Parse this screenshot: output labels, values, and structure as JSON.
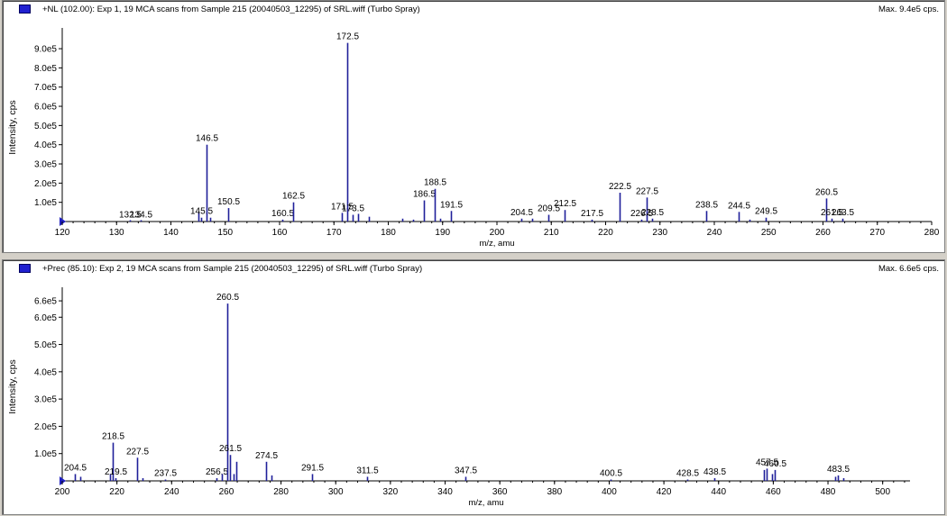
{
  "chart_data": [
    {
      "type": "bar",
      "title": "+NL (102.00): Exp 1, 19 MCA scans from Sample 215 (20040503_12295) of SRL.wiff (Turbo Spray)",
      "max_label": "Max. 9.4e5 cps.",
      "xlabel": "m/z, amu",
      "ylabel": "Intensity, cps",
      "xlim": [
        120,
        280
      ],
      "ylim": [
        0,
        980000
      ],
      "x_ticks": [
        "120",
        "130",
        "140",
        "150",
        "160",
        "170",
        "180",
        "190",
        "200",
        "210",
        "220",
        "230",
        "240",
        "250",
        "260",
        "270",
        "280"
      ],
      "y_ticks": [
        "1.0e5",
        "2.0e5",
        "3.0e5",
        "4.0e5",
        "5.0e5",
        "6.0e5",
        "7.0e5",
        "8.0e5",
        "9.0e5"
      ],
      "bar_color": "#1f1f9a",
      "peaks": [
        {
          "x": 132.5,
          "y": 2000,
          "label": "132.5"
        },
        {
          "x": 134.5,
          "y": 2000,
          "label": "134.5"
        },
        {
          "x": 145.0,
          "y": 50000,
          "label": null
        },
        {
          "x": 145.5,
          "y": 20000,
          "label": "145.5"
        },
        {
          "x": 146.5,
          "y": 400000,
          "label": "146.5"
        },
        {
          "x": 147.2,
          "y": 20000,
          "label": null
        },
        {
          "x": 150.5,
          "y": 70000,
          "label": "150.5"
        },
        {
          "x": 160.5,
          "y": 10000,
          "label": "160.5"
        },
        {
          "x": 162.5,
          "y": 100000,
          "label": "162.5"
        },
        {
          "x": 171.5,
          "y": 45000,
          "label": "171.5"
        },
        {
          "x": 172.5,
          "y": 930000,
          "label": "172.5"
        },
        {
          "x": 173.5,
          "y": 35000,
          "label": "173.5"
        },
        {
          "x": 174.5,
          "y": 40000,
          "label": null
        },
        {
          "x": 176.5,
          "y": 25000,
          "label": null
        },
        {
          "x": 182.5,
          "y": 15000,
          "label": null
        },
        {
          "x": 184.5,
          "y": 10000,
          "label": null
        },
        {
          "x": 186.5,
          "y": 110000,
          "label": "186.5"
        },
        {
          "x": 188.5,
          "y": 170000,
          "label": "188.5"
        },
        {
          "x": 189.5,
          "y": 15000,
          "label": null
        },
        {
          "x": 191.5,
          "y": 55000,
          "label": "191.5"
        },
        {
          "x": 204.5,
          "y": 15000,
          "label": "204.5"
        },
        {
          "x": 206.5,
          "y": 15000,
          "label": null
        },
        {
          "x": 209.5,
          "y": 35000,
          "label": "209.5"
        },
        {
          "x": 212.5,
          "y": 60000,
          "label": "212.5"
        },
        {
          "x": 217.5,
          "y": 10000,
          "label": "217.5"
        },
        {
          "x": 222.5,
          "y": 150000,
          "label": "222.5"
        },
        {
          "x": 226.5,
          "y": 10000,
          "label": "226.5"
        },
        {
          "x": 227.5,
          "y": 125000,
          "label": "227.5"
        },
        {
          "x": 228.5,
          "y": 15000,
          "label": "228.5"
        },
        {
          "x": 238.5,
          "y": 55000,
          "label": "238.5"
        },
        {
          "x": 244.5,
          "y": 50000,
          "label": "244.5"
        },
        {
          "x": 246.5,
          "y": 10000,
          "label": null
        },
        {
          "x": 249.5,
          "y": 20000,
          "label": "249.5"
        },
        {
          "x": 260.5,
          "y": 120000,
          "label": "260.5"
        },
        {
          "x": 261.5,
          "y": 15000,
          "label": "261.5"
        },
        {
          "x": 263.5,
          "y": 15000,
          "label": "263.5"
        }
      ]
    },
    {
      "type": "bar",
      "title": "+Prec (85.10): Exp 2, 19 MCA scans from Sample 215 (20040503_12295) of SRL.wiff (Turbo Spray)",
      "max_label": "Max. 6.6e5 cps.",
      "xlabel": "m/z, amu",
      "ylabel": "Intensity, cps",
      "xlim": [
        200,
        510
      ],
      "ylim": [
        0,
        690000
      ],
      "x_ticks": [
        "200",
        "220",
        "240",
        "260",
        "280",
        "300",
        "320",
        "340",
        "360",
        "380",
        "400",
        "420",
        "440",
        "460",
        "480",
        "500"
      ],
      "y_ticks": [
        "1.0e5",
        "2.0e5",
        "3.0e5",
        "4.0e5",
        "5.0e5",
        "6.0e5",
        "6.6e5"
      ],
      "bar_color": "#1f1f9a",
      "peaks": [
        {
          "x": 204.5,
          "y": 25000,
          "label": "204.5"
        },
        {
          "x": 206.5,
          "y": 15000,
          "label": null
        },
        {
          "x": 217.5,
          "y": 25000,
          "label": null
        },
        {
          "x": 218.5,
          "y": 140000,
          "label": "218.5"
        },
        {
          "x": 219.5,
          "y": 10000,
          "label": "219.5"
        },
        {
          "x": 227.5,
          "y": 85000,
          "label": "227.5"
        },
        {
          "x": 229.5,
          "y": 10000,
          "label": null
        },
        {
          "x": 237.5,
          "y": 5000,
          "label": "237.5"
        },
        {
          "x": 256.5,
          "y": 10000,
          "label": "256.5"
        },
        {
          "x": 258.5,
          "y": 25000,
          "label": null
        },
        {
          "x": 260.5,
          "y": 650000,
          "label": "260.5"
        },
        {
          "x": 261.5,
          "y": 95000,
          "label": "261.5"
        },
        {
          "x": 262.5,
          "y": 25000,
          "label": null
        },
        {
          "x": 263.5,
          "y": 70000,
          "label": null
        },
        {
          "x": 274.5,
          "y": 70000,
          "label": "274.5"
        },
        {
          "x": 276.5,
          "y": 20000,
          "label": null
        },
        {
          "x": 291.5,
          "y": 25000,
          "label": "291.5"
        },
        {
          "x": 311.5,
          "y": 15000,
          "label": "311.5"
        },
        {
          "x": 347.5,
          "y": 15000,
          "label": "347.5"
        },
        {
          "x": 400.5,
          "y": 5000,
          "label": "400.5"
        },
        {
          "x": 428.5,
          "y": 5000,
          "label": "428.5"
        },
        {
          "x": 438.5,
          "y": 10000,
          "label": "438.5"
        },
        {
          "x": 456.5,
          "y": 40000,
          "label": null
        },
        {
          "x": 457.5,
          "y": 45000,
          "label": "457.5"
        },
        {
          "x": 459.5,
          "y": 25000,
          "label": null
        },
        {
          "x": 460.5,
          "y": 40000,
          "label": "460.5"
        },
        {
          "x": 482.5,
          "y": 15000,
          "label": null
        },
        {
          "x": 483.5,
          "y": 20000,
          "label": "483.5"
        },
        {
          "x": 485.5,
          "y": 10000,
          "label": null
        }
      ]
    }
  ]
}
